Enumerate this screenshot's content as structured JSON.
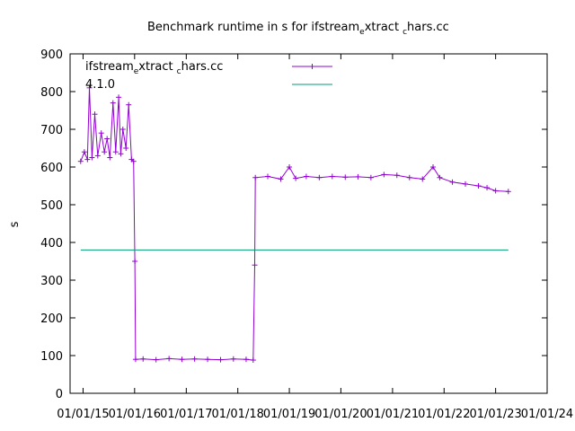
{
  "chart_data": {
    "type": "line",
    "title": {
      "main": "Benchmark runtime in s for ifstream",
      "s1": "e",
      "mid": "xtract",
      "s2": "c",
      "end": "hars.cc"
    },
    "ylabel": "s",
    "xlabel": "",
    "ylim": [
      0,
      900
    ],
    "xlim": [
      "2014-10-01",
      "2024-01-01"
    ],
    "grid": false,
    "legend_position": "top-right",
    "yticks": [
      "0",
      "100",
      "200",
      "300",
      "400",
      "500",
      "600",
      "700",
      "800",
      "900"
    ],
    "xticks": [
      "01/01/15",
      "01/01/16",
      "01/01/17",
      "01/01/18",
      "01/01/19",
      "01/01/20",
      "01/01/21",
      "01/01/22",
      "01/01/23",
      "01/01/24"
    ],
    "annotation": {
      "line1_a": "ifstream",
      "line1_s1": "e",
      "line1_b": "xtract",
      "line1_s2": "c",
      "line1_c": "hars.cc",
      "line2": "4.1.0"
    },
    "series": [
      {
        "color": "#9400d3",
        "style": "linespoints",
        "points": [
          [
            "2014-12-15",
            615
          ],
          [
            "2015-01-10",
            640
          ],
          [
            "2015-02-01",
            620
          ],
          [
            "2015-02-15",
            810
          ],
          [
            "2015-03-05",
            625
          ],
          [
            "2015-03-25",
            740
          ],
          [
            "2015-04-15",
            630
          ],
          [
            "2015-05-10",
            690
          ],
          [
            "2015-06-01",
            640
          ],
          [
            "2015-06-20",
            675
          ],
          [
            "2015-07-10",
            625
          ],
          [
            "2015-08-01",
            770
          ],
          [
            "2015-08-20",
            640
          ],
          [
            "2015-09-10",
            785
          ],
          [
            "2015-09-25",
            635
          ],
          [
            "2015-10-10",
            700
          ],
          [
            "2015-11-01",
            650
          ],
          [
            "2015-11-20",
            765
          ],
          [
            "2015-12-10",
            620
          ],
          [
            "2015-12-25",
            615
          ],
          [
            "2016-01-03",
            350
          ],
          [
            "2016-01-08",
            90
          ],
          [
            "2016-03-01",
            91
          ],
          [
            "2016-06-01",
            89
          ],
          [
            "2016-09-01",
            92
          ],
          [
            "2016-12-01",
            90
          ],
          [
            "2017-03-01",
            91
          ],
          [
            "2017-06-01",
            90
          ],
          [
            "2017-09-01",
            89
          ],
          [
            "2017-12-01",
            91
          ],
          [
            "2018-03-01",
            90
          ],
          [
            "2018-04-20",
            88
          ],
          [
            "2018-05-01",
            340
          ],
          [
            "2018-05-05",
            572
          ],
          [
            "2018-08-01",
            575
          ],
          [
            "2018-11-01",
            568
          ],
          [
            "2019-01-01",
            600
          ],
          [
            "2019-02-15",
            570
          ],
          [
            "2019-05-01",
            575
          ],
          [
            "2019-08-01",
            572
          ],
          [
            "2019-11-01",
            575
          ],
          [
            "2020-02-01",
            573
          ],
          [
            "2020-05-01",
            574
          ],
          [
            "2020-08-01",
            572
          ],
          [
            "2020-11-01",
            580
          ],
          [
            "2021-02-01",
            578
          ],
          [
            "2021-05-01",
            572
          ],
          [
            "2021-08-01",
            568
          ],
          [
            "2021-10-15",
            600
          ],
          [
            "2021-12-01",
            572
          ],
          [
            "2022-03-01",
            560
          ],
          [
            "2022-06-01",
            555
          ],
          [
            "2022-09-01",
            550
          ],
          [
            "2022-11-01",
            545
          ],
          [
            "2023-01-01",
            537
          ],
          [
            "2023-04-01",
            535
          ]
        ]
      },
      {
        "color": "#009e73",
        "style": "lines",
        "points": [
          [
            "2014-12-15",
            380
          ],
          [
            "2023-04-01",
            380
          ]
        ]
      }
    ]
  }
}
